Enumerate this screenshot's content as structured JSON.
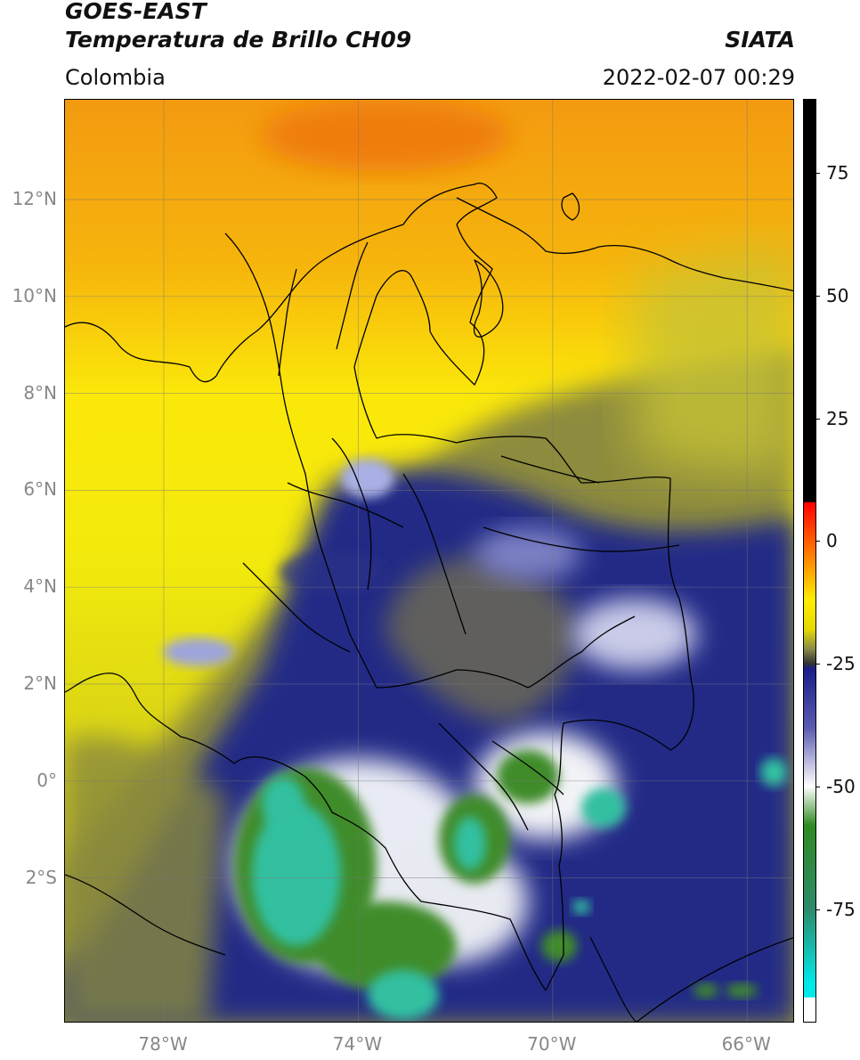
{
  "header": {
    "title_line1": "GOES-EAST",
    "title_line2": "Temperatura de Brillo CH09",
    "brand": "SIATA",
    "region": "Colombia",
    "timestamp": "2022-02-07 00:29"
  },
  "map": {
    "extent": {
      "lon_min": -80,
      "lon_max": -65,
      "lat_min": -5,
      "lat_max": 14
    },
    "lat_ticks": [
      {
        "value": 12,
        "label": "12°N"
      },
      {
        "value": 10,
        "label": "10°N"
      },
      {
        "value": 8,
        "label": "8°N"
      },
      {
        "value": 6,
        "label": "6°N"
      },
      {
        "value": 4,
        "label": "4°N"
      },
      {
        "value": 2,
        "label": "2°N"
      },
      {
        "value": 0,
        "label": "0°"
      },
      {
        "value": -2,
        "label": "2°S"
      }
    ],
    "lon_ticks": [
      {
        "value": -78,
        "label": "78°W"
      },
      {
        "value": -74,
        "label": "74°W"
      },
      {
        "value": -70,
        "label": "70°W"
      },
      {
        "value": -66,
        "label": "66°W"
      }
    ],
    "grid": true,
    "colors": {
      "warm_orange": "#f29a12",
      "yellow": "#fbef0a",
      "olive": "#8a8a3a",
      "navy": "#1c237f",
      "white": "#f2f2f8",
      "green": "#3d8d2e",
      "teal": "#2fc5a6",
      "border": "#000000"
    }
  },
  "colorbar": {
    "range": [
      -98,
      90
    ],
    "ticks": [
      {
        "value": 75,
        "label": "75"
      },
      {
        "value": 50,
        "label": "50"
      },
      {
        "value": 25,
        "label": "25"
      },
      {
        "value": 0,
        "label": "0"
      },
      {
        "value": -25,
        "label": "-25"
      },
      {
        "value": -50,
        "label": "-50"
      },
      {
        "value": -75,
        "label": "-75"
      }
    ],
    "stops": [
      {
        "value": 90,
        "color": "#000000"
      },
      {
        "value": 8,
        "color": "#000000"
      },
      {
        "value": 7.9,
        "color": "#ff0000"
      },
      {
        "value": -3,
        "color": "#ff8000"
      },
      {
        "value": -12,
        "color": "#ffee00"
      },
      {
        "value": -18,
        "color": "#e6d800"
      },
      {
        "value": -22,
        "color": "#8a8a4a"
      },
      {
        "value": -25,
        "color": "#333333"
      },
      {
        "value": -26,
        "color": "#1a1f8a"
      },
      {
        "value": -38,
        "color": "#5a5ab0"
      },
      {
        "value": -50,
        "color": "#ffffff"
      },
      {
        "value": -58,
        "color": "#2f8a22"
      },
      {
        "value": -75,
        "color": "#2e8a6a"
      },
      {
        "value": -90,
        "color": "#00e8e8"
      },
      {
        "value": -93,
        "color": "#00e8e8"
      },
      {
        "value": -93.1,
        "color": "#ffffff"
      },
      {
        "value": -98,
        "color": "#ffffff"
      }
    ]
  }
}
